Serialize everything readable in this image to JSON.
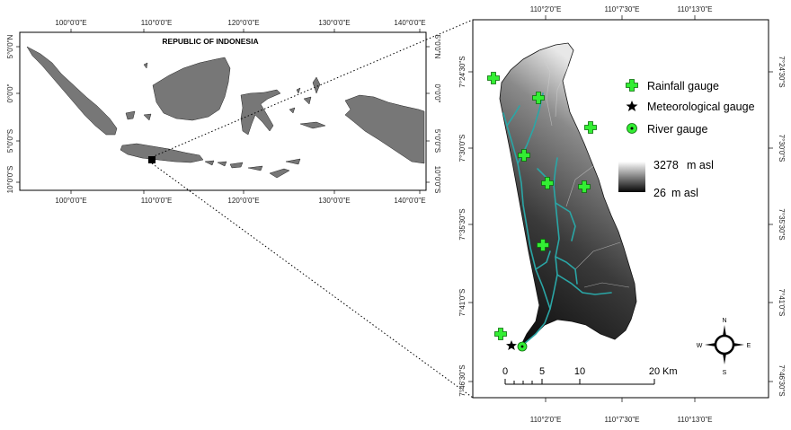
{
  "inset_map": {
    "title": "REPUBLIC OF INDONESIA",
    "top_ticks": [
      "100°0'0\"E",
      "110°0'0\"E",
      "120°0'0\"E",
      "130°0'0\"E",
      "140°0'0\"E"
    ],
    "bottom_ticks": [
      "100°0'0\"E",
      "110°0'0\"E",
      "120°0'0\"E",
      "130°0'0\"E",
      "140°0'0\"E"
    ],
    "left_ticks": [
      "5°0'0\"N",
      "0°0'0\"",
      "5°0'0\"S",
      "10°0'0\"S"
    ],
    "right_ticks": [
      "5°0'0\"N",
      "0°0'0\"",
      "5°0'0\"S",
      "10°0'0\"S"
    ]
  },
  "main_map": {
    "top_ticks": [
      "110°2'0\"E",
      "110°7'30\"E",
      "110°13'0\"E"
    ],
    "bottom_ticks": [
      "110°2'0\"E",
      "110°7'30\"E",
      "110°13'0\"E"
    ],
    "left_ticks": [
      "7°24'30\"S",
      "7°30'0\"S",
      "7°35'30\"S",
      "7°41'0\"S",
      "7°46'30\"S"
    ],
    "right_ticks": [
      "7°24'30\"S",
      "7°30'0\"S",
      "7°35'30\"S",
      "7°41'0\"S",
      "7°46'30\"S"
    ]
  },
  "legend": {
    "rainfall": "Rainfall gauge",
    "meteorological": "Meteorological gauge",
    "river": "River gauge",
    "elev_max": "3278",
    "elev_min": "26",
    "elev_unit": "m asl"
  },
  "scale_bar": {
    "labels": [
      "0",
      "5",
      "10",
      "20"
    ],
    "unit": "Km"
  },
  "compass": {
    "n": "N",
    "s": "S",
    "e": "E",
    "w": "W"
  },
  "colors": {
    "rainfall_gauge": "#33ee33",
    "river": "#2aa6a6",
    "land": "#777777"
  }
}
